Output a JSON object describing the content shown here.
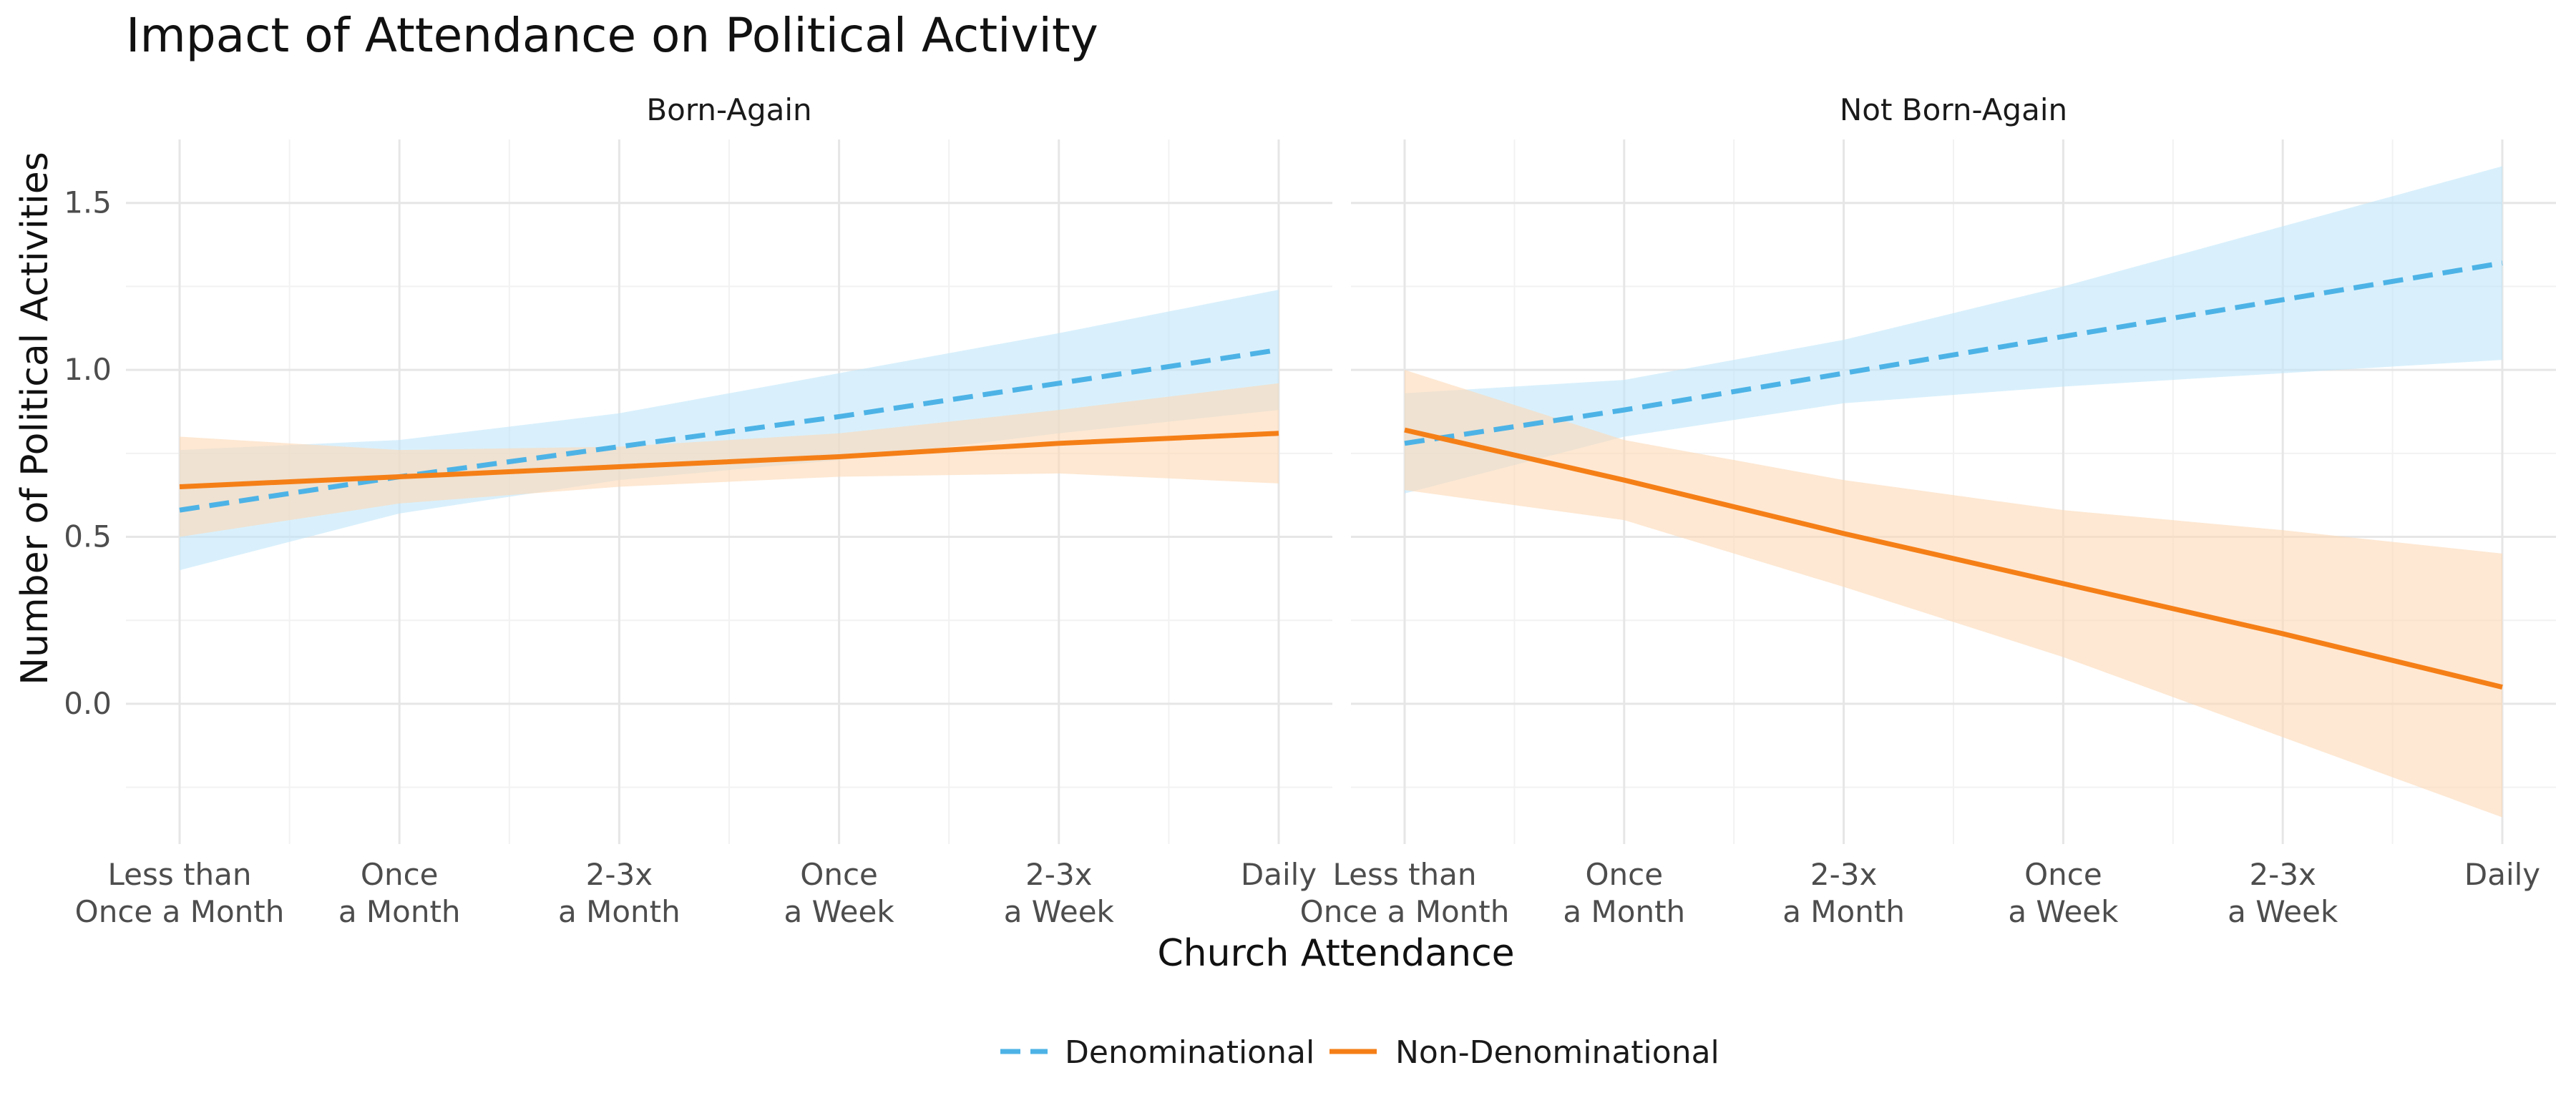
{
  "chart_data": {
    "type": "line",
    "title": "Impact of Attendance on Political Activity",
    "xlabel": "Church Attendance",
    "ylabel": "Number of Political Activities",
    "categories": [
      [
        "Less than",
        "Once a Month"
      ],
      [
        "Once",
        "a Month"
      ],
      [
        "2-3x",
        "a Month"
      ],
      [
        "Once",
        "a Week"
      ],
      [
        "2-3x",
        "a Week"
      ],
      [
        "Daily"
      ]
    ],
    "ylim": [
      -0.42,
      1.69
    ],
    "yticks": [
      0.0,
      0.5,
      1.0,
      1.5
    ],
    "ytick_labels": [
      "0.0",
      "0.5",
      "1.0",
      "1.5"
    ],
    "grid": true,
    "legend_position": "bottom",
    "panels": [
      {
        "name": "Born-Again",
        "series": [
          {
            "name": "Denominational",
            "style": "dashed",
            "color": "#4db3e6",
            "band_color": "#bfe6fa",
            "values": [
              0.58,
              0.68,
              0.77,
              0.86,
              0.96,
              1.06
            ],
            "lower": [
              0.4,
              0.57,
              0.67,
              0.73,
              0.81,
              0.88
            ],
            "upper": [
              0.76,
              0.79,
              0.87,
              0.99,
              1.11,
              1.24
            ]
          },
          {
            "name": "Non-Denominational",
            "style": "solid",
            "color": "#f57f17",
            "band_color": "#fdd9b5",
            "values": [
              0.65,
              0.68,
              0.71,
              0.74,
              0.78,
              0.81
            ],
            "lower": [
              0.5,
              0.6,
              0.65,
              0.68,
              0.69,
              0.66
            ],
            "upper": [
              0.8,
              0.76,
              0.77,
              0.81,
              0.88,
              0.96
            ]
          }
        ]
      },
      {
        "name": "Not Born-Again",
        "series": [
          {
            "name": "Denominational",
            "style": "dashed",
            "color": "#4db3e6",
            "band_color": "#bfe6fa",
            "values": [
              0.78,
              0.88,
              0.99,
              1.1,
              1.21,
              1.32
            ],
            "lower": [
              0.63,
              0.8,
              0.9,
              0.95,
              0.99,
              1.03
            ],
            "upper": [
              0.93,
              0.97,
              1.09,
              1.25,
              1.43,
              1.61
            ]
          },
          {
            "name": "Non-Denominational",
            "style": "solid",
            "color": "#f57f17",
            "band_color": "#fdd9b5",
            "values": [
              0.82,
              0.67,
              0.51,
              0.36,
              0.21,
              0.05
            ],
            "lower": [
              0.64,
              0.55,
              0.35,
              0.14,
              -0.1,
              -0.34
            ],
            "upper": [
              1.0,
              0.79,
              0.67,
              0.58,
              0.52,
              0.45
            ]
          }
        ]
      }
    ],
    "legend": [
      {
        "name": "Denominational",
        "style": "dashed",
        "color": "#4db3e6"
      },
      {
        "name": "Non-Denominational",
        "style": "solid",
        "color": "#f57f17"
      }
    ]
  }
}
